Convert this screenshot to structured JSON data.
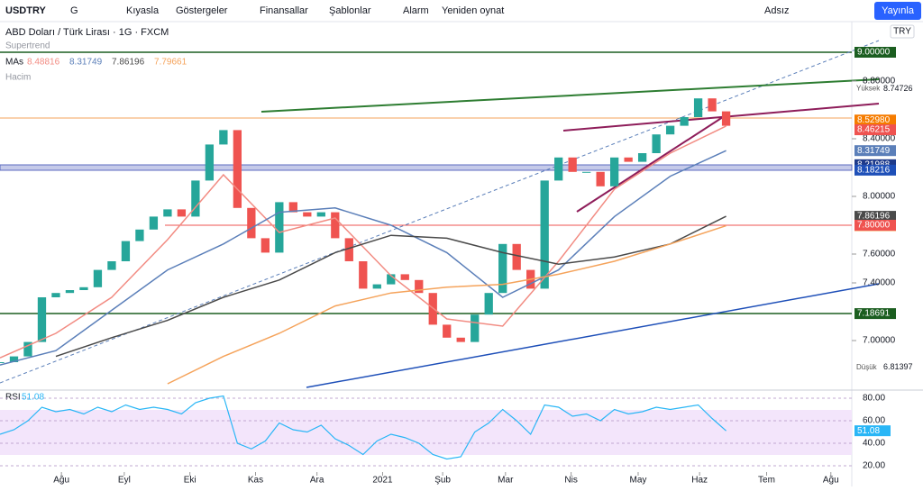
{
  "toolbar": {
    "symbol": "USDTRY",
    "interval": "G",
    "items": [
      "Kıyasla",
      "Göstergeler",
      "Finansallar",
      "Şablonlar",
      "Alarm",
      "Yeniden oynat"
    ],
    "layout": "Adsız",
    "publish": "Yayınla"
  },
  "legend": {
    "title": "ABD Doları / Türk Lirası · 1G · FXCM",
    "supertrend": "Supertrend",
    "mas": "MAs",
    "volume": "Hacim",
    "currency": "TRY"
  },
  "chart_data": {
    "type": "candlestick",
    "xlim": [
      0,
      61
    ],
    "ylim": [
      6.675,
      9.2125
    ],
    "xticks": [
      {
        "value": 4.4,
        "label": "Ağu"
      },
      {
        "value": 8.9,
        "label": "Eyl"
      },
      {
        "value": 13.6,
        "label": "Eki"
      },
      {
        "value": 18.3,
        "label": "Kas"
      },
      {
        "value": 22.7,
        "label": "Ara"
      },
      {
        "value": 27.4,
        "label": "2021"
      },
      {
        "value": 31.7,
        "label": "Şub"
      },
      {
        "value": 36.2,
        "label": "Mar"
      },
      {
        "value": 40.9,
        "label": "Nis"
      },
      {
        "value": 45.7,
        "label": "May"
      },
      {
        "value": 50.1,
        "label": "Haz"
      },
      {
        "value": 54.9,
        "label": "Tem"
      },
      {
        "value": 59.5,
        "label": "Ağu"
      }
    ],
    "yticks": [
      {
        "value": 8.8,
        "label": "8.80000"
      },
      {
        "value": 8.4,
        "label": "8.40000"
      },
      {
        "value": 8.0,
        "label": "8.00000"
      },
      {
        "value": 7.6,
        "label": "7.60000"
      },
      {
        "value": 7.4,
        "label": "7.40000"
      },
      {
        "value": 7.0,
        "label": "7.00000"
      }
    ],
    "series": [
      {
        "name": "USDTRY",
        "colors": [
          "#26a69a",
          "#ef5350"
        ],
        "values": [
          6.85,
          6.89,
          6.99,
          7.3,
          7.33,
          7.35,
          7.37,
          7.49,
          7.55,
          7.69,
          7.77,
          7.86,
          7.91,
          7.86,
          8.11,
          8.36,
          8.46,
          7.92,
          7.71,
          7.61,
          7.96,
          7.89,
          7.86,
          7.89,
          7.71,
          7.55,
          7.36,
          7.39,
          7.46,
          7.42,
          7.33,
          7.11,
          7.02,
          6.99,
          7.18,
          7.33,
          7.67,
          7.49,
          7.36,
          8.11,
          8.27,
          8.17,
          8.17,
          8.07,
          8.27,
          8.24,
          8.3,
          8.43,
          8.49,
          8.55,
          8.68,
          8.59,
          8.49
        ]
      },
      {
        "color": "#f28b82",
        "step": 4,
        "values": [
          6.88,
          7.05,
          7.3,
          7.7,
          8.15,
          7.75,
          7.85,
          7.45,
          7.15,
          7.1,
          7.55,
          8.05,
          8.3,
          8.48816
        ]
      },
      {
        "color": "#5b7fb9",
        "step": 4,
        "values": [
          6.83,
          6.93,
          7.21,
          7.49,
          7.67,
          7.89,
          7.92,
          7.8,
          7.61,
          7.3,
          7.49,
          7.86,
          8.14,
          8.31749
        ]
      },
      {
        "color": "#4a4a4a",
        "step": 4,
        "values": [
          null,
          6.89,
          7.02,
          7.14,
          7.3,
          7.42,
          7.61,
          7.73,
          7.71,
          7.61,
          7.53,
          7.58,
          7.67,
          7.86196
        ]
      },
      {
        "color": "#f5a35b",
        "step": 4,
        "values": [
          null,
          null,
          null,
          6.7,
          6.89,
          7.05,
          7.24,
          7.33,
          7.37,
          7.39,
          7.46,
          7.55,
          7.67,
          7.79661
        ]
      }
    ],
    "badges": [
      {
        "value": 9.0,
        "label": "9.00000",
        "color": "#1b5e20"
      },
      {
        "value": 8.5298,
        "label": "8.52980",
        "color": "#f57c00"
      },
      {
        "value": 8.46215,
        "label": "8.46215",
        "color": "#ef5350"
      },
      {
        "value": 8.21988,
        "label": "8.21988",
        "color": "#1e3a8a"
      },
      {
        "value": 8.18216,
        "label": "8.18216",
        "color": "#1e4fb8"
      },
      {
        "value": 7.8,
        "label": "7.80000",
        "color": "#ef5350"
      },
      {
        "value": 7.18691,
        "label": "7.18691",
        "color": "#1b5e20"
      }
    ],
    "high": {
      "name": "Yüksek",
      "value": 8.74726,
      "label": "8.74726"
    },
    "low": {
      "name": "Düşük",
      "value": 6.81397,
      "label": "6.81397"
    }
  },
  "rsi": {
    "name": "RSI",
    "value": 51.08,
    "ylim": [
      14.4,
      84.8
    ],
    "yticks": [
      {
        "value": 80,
        "label": "80.00"
      },
      {
        "value": 60,
        "label": "60.00"
      },
      {
        "value": 40,
        "label": "40.00"
      },
      {
        "value": 20,
        "label": "20.00"
      }
    ],
    "color": "#29b6f6",
    "values": [
      48,
      52,
      60,
      72,
      68,
      70,
      66,
      72,
      68,
      74,
      70,
      72,
      70,
      66,
      76,
      80,
      82,
      40,
      35,
      42,
      58,
      52,
      50,
      56,
      44,
      38,
      30,
      42,
      48,
      45,
      40,
      30,
      26,
      28,
      50,
      58,
      70,
      60,
      48,
      74,
      72,
      64,
      66,
      60,
      70,
      66,
      68,
      72,
      70,
      72,
      74,
      62,
      51.08
    ]
  }
}
